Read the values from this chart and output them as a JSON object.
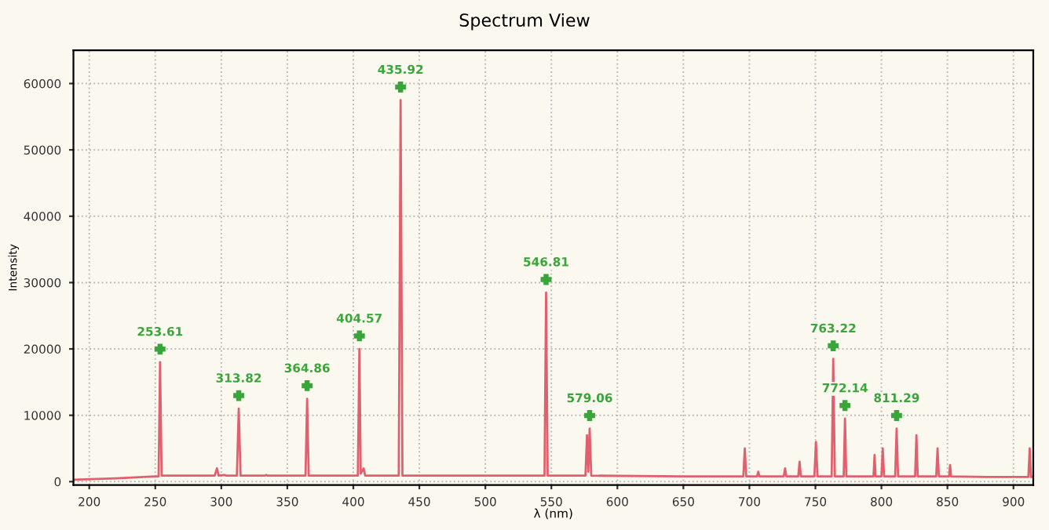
{
  "chart_data": {
    "type": "line",
    "title": "Spectrum View",
    "xlabel": "λ (nm)",
    "ylabel": "Intensity",
    "xlim": [
      188,
      915
    ],
    "ylim": [
      -500,
      65000
    ],
    "xticks": [
      200,
      250,
      300,
      350,
      400,
      450,
      500,
      550,
      600,
      650,
      700,
      750,
      800,
      850,
      900
    ],
    "yticks": [
      0,
      10000,
      20000,
      30000,
      40000,
      50000,
      60000
    ],
    "grid": true,
    "marker": "none",
    "line_style": "solid",
    "series": [
      {
        "color": "#e0606e",
        "x": [
          188,
          220,
          250,
          252.5,
          253.6,
          254.8,
          257,
          295,
          296.7,
          298,
          302,
          304,
          311.8,
          313.2,
          314.6,
          333,
          334,
          335,
          363.8,
          365,
          366.2,
          403.4,
          404.6,
          405.6,
          407.8,
          409,
          434.4,
          435.8,
          437.2,
          500,
          544.8,
          546,
          547.2,
          575.8,
          577,
          578,
          579,
          580.2,
          650,
          695.4,
          696.5,
          697.6,
          705.8,
          706.7,
          707.6,
          726,
          727,
          728,
          737,
          738,
          739,
          749.2,
          750.4,
          751.6,
          762.3,
          763.5,
          764.7,
          771.4,
          772.4,
          773.4,
          794,
          794.8,
          795.6,
          797.5,
          800,
          801,
          802,
          810.4,
          811.5,
          812.6,
          825.5,
          826.5,
          827.5,
          841.5,
          842.5,
          843.5,
          851.2,
          852,
          852.8,
          880,
          911.3,
          912.3,
          913.3,
          915
        ],
        "values": [
          300,
          500,
          800,
          800,
          18000,
          900,
          900,
          900,
          2000,
          900,
          1000,
          900,
          900,
          11000,
          900,
          900,
          1000,
          900,
          900,
          12500,
          900,
          900,
          20000,
          1200,
          2000,
          900,
          900,
          57500,
          900,
          900,
          900,
          28500,
          900,
          900,
          7000,
          1500,
          8000,
          900,
          800,
          800,
          5000,
          800,
          800,
          1500,
          800,
          800,
          2000,
          800,
          800,
          3000,
          800,
          800,
          6000,
          800,
          800,
          18500,
          800,
          800,
          9500,
          800,
          800,
          4000,
          800,
          800,
          800,
          5000,
          800,
          800,
          8000,
          800,
          800,
          7000,
          800,
          800,
          5000,
          800,
          800,
          2500,
          800,
          700,
          700,
          5000,
          700,
          700
        ]
      }
    ],
    "annotations": [
      {
        "text": "253.61",
        "x": 253.6,
        "y": 18000
      },
      {
        "text": "313.82",
        "x": 313.2,
        "y": 11000
      },
      {
        "text": "364.86",
        "x": 365,
        "y": 12500
      },
      {
        "text": "404.57",
        "x": 404.6,
        "y": 20000
      },
      {
        "text": "435.92",
        "x": 435.8,
        "y": 57500
      },
      {
        "text": "546.81",
        "x": 546,
        "y": 28500
      },
      {
        "text": "579.06",
        "x": 579,
        "y": 8000
      },
      {
        "text": "763.22",
        "x": 763.5,
        "y": 18500
      },
      {
        "text": "772.14",
        "x": 772.4,
        "y": 9500
      },
      {
        "text": "811.29",
        "x": 811.5,
        "y": 8000
      }
    ]
  }
}
